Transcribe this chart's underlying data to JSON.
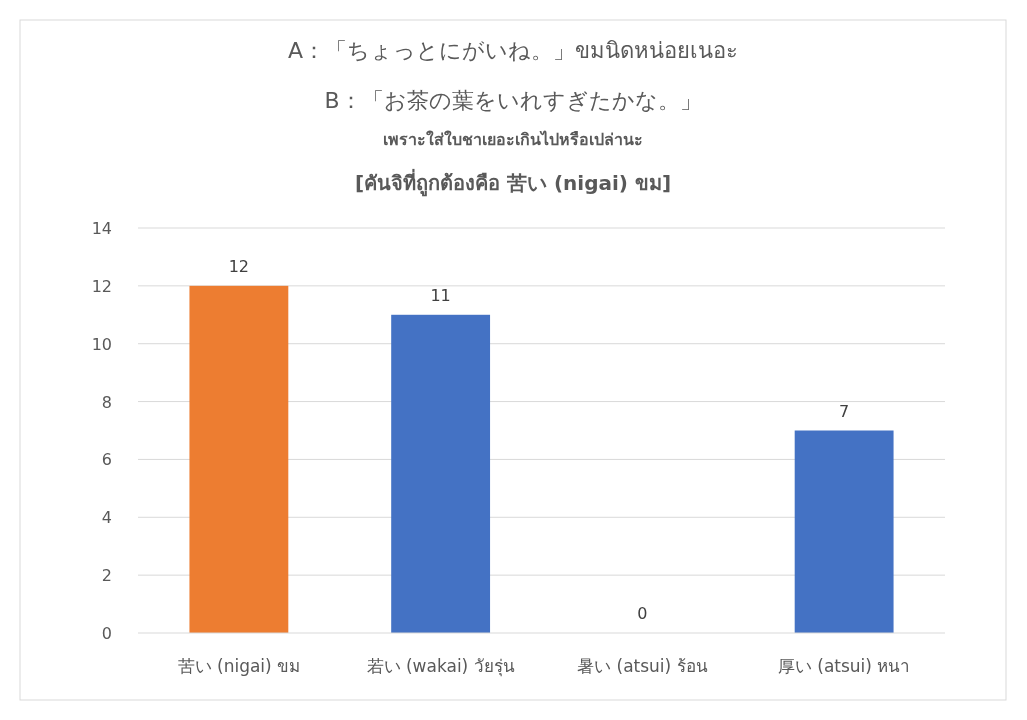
{
  "chart_data": {
    "type": "bar",
    "title": "A：「ちょっとにがいね。」ขมนิดหน่อยเนอะ",
    "subtitle": "B：「お茶の葉をいれすぎたかな。」",
    "annotations": [
      "เพราะใส่ใบชาเยอะเกินไปหรือเปล่านะ",
      "[คันจิที่ถูกต้องคือ 苦い (nigai)  ขม]"
    ],
    "categories": [
      "苦い (nigai) ขม",
      "若い (wakai) วัยรุ่น",
      "暑い (atsui) ร้อน",
      "厚い (atsui) หนา"
    ],
    "values": [
      12,
      11,
      0,
      7
    ],
    "colors": [
      "#ed7d31",
      "#4472c4",
      "#4472c4",
      "#4472c4"
    ],
    "ylim": [
      0,
      14
    ],
    "yticks": [
      0,
      2,
      4,
      6,
      8,
      10,
      12,
      14
    ],
    "grid": "y",
    "data_labels": true
  }
}
